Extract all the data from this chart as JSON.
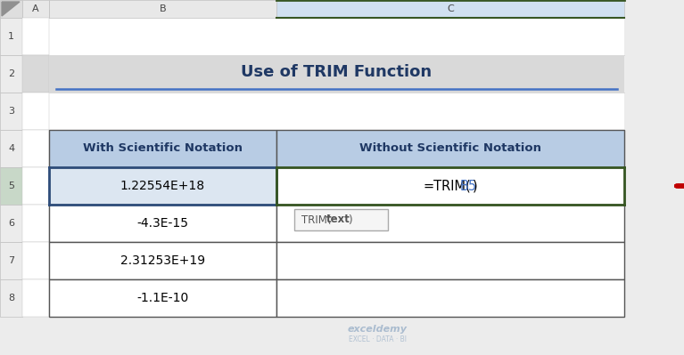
{
  "title": "Use of TRIM Function",
  "col_headers": [
    "With Scientific Notation",
    "Without Scientific Notation"
  ],
  "col_b_values": [
    "1.22554E+18",
    "-4.3E-15",
    "2.31253E+19",
    "-1.1E-10"
  ],
  "bg_color": "#ececec",
  "header_bg": "#b8cce4",
  "row5_bg": "#dce6f1",
  "title_bar_bg": "#d9d9d9",
  "title_bar_underline": "#4472c4",
  "grid_color": "#555555",
  "green_border": "#375623",
  "blue_border": "#2e4d7b",
  "row_number_bg": "#ececec",
  "col_header_bg": "#ececec",
  "selected_col_header_bg": "#d0e0f0",
  "row5_number_bg": "#c8d8c8",
  "title_text_color": "#1f3864",
  "header_text_color": "#1f3864",
  "arrow_color": "#c00000",
  "tooltip_bg": "#f5f5f5",
  "tooltip_border": "#aaaaaa",
  "b5_ref_color": "#4472c4",
  "white": "#ffffff",
  "corner_tri_color": "#909090",
  "row_divider": "#c0c0c0"
}
